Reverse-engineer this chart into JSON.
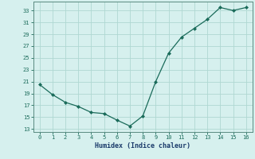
{
  "x": [
    0,
    1,
    2,
    3,
    4,
    5,
    6,
    7,
    8,
    9,
    10,
    11,
    12,
    13,
    14,
    15,
    16
  ],
  "y": [
    20.5,
    18.8,
    17.5,
    16.8,
    15.8,
    15.6,
    14.5,
    13.5,
    15.2,
    21.0,
    25.8,
    28.5,
    30.0,
    31.5,
    33.5,
    33.0,
    33.5
  ],
  "xlabel": "Humidex (Indice chaleur)",
  "xlim": [
    -0.5,
    16.5
  ],
  "ylim": [
    12.5,
    34.5
  ],
  "yticks": [
    13,
    15,
    17,
    19,
    21,
    23,
    25,
    27,
    29,
    31,
    33
  ],
  "xticks": [
    0,
    1,
    2,
    3,
    4,
    5,
    6,
    7,
    8,
    9,
    10,
    11,
    12,
    13,
    14,
    15,
    16
  ],
  "line_color": "#1a6b5a",
  "marker_color": "#1a6b5a",
  "bg_color": "#d6f0ee",
  "grid_color": "#afd8d2",
  "axis_color": "#5a8a80",
  "tick_color": "#1a6b5a",
  "label_color": "#1a3a6a"
}
